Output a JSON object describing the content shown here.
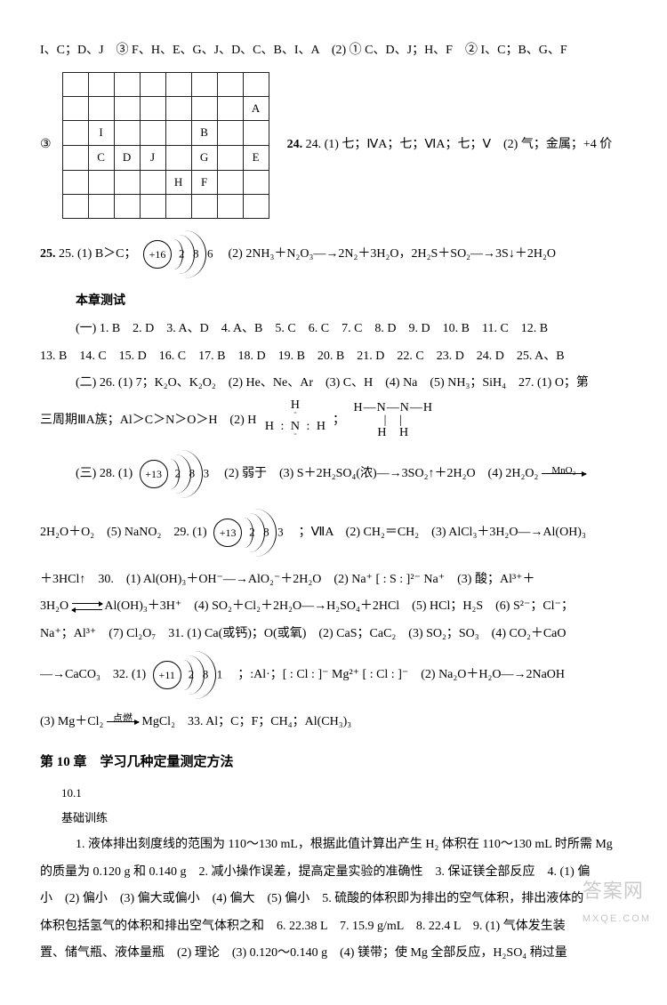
{
  "topline": "I、C；D、J　③ F、H、E、G、J、D、C、B、I、A　(2) ① C、D、J；H、F　② I、C；B、G、F",
  "q3_marker": "③",
  "grid": {
    "rows": 6,
    "cols": 8,
    "cells": [
      {
        "r": 1,
        "c": 7,
        "t": "A"
      },
      {
        "r": 2,
        "c": 1,
        "t": "I"
      },
      {
        "r": 2,
        "c": 5,
        "t": "B"
      },
      {
        "r": 3,
        "c": 1,
        "t": "C"
      },
      {
        "r": 3,
        "c": 2,
        "t": "D"
      },
      {
        "r": 3,
        "c": 3,
        "t": "J"
      },
      {
        "r": 3,
        "c": 5,
        "t": "G"
      },
      {
        "r": 3,
        "c": 7,
        "t": "E"
      },
      {
        "r": 4,
        "c": 4,
        "t": "H"
      },
      {
        "r": 4,
        "c": 5,
        "t": "F"
      }
    ],
    "border_color": "#222222"
  },
  "after_grid": "24. (1) 七；ⅣA；七；ⅥA；七；Ⅴ　(2) 气；金属；+4 价",
  "q25_prefix": "25. (1) B＞C；",
  "atom_25": {
    "nucleus": "+16",
    "shells": [
      "2",
      "8",
      "6"
    ]
  },
  "q25_rest": "(2) 2NH₃＋N₂O₃―→2N₂＋3H₂O，2H₂S＋SO₂―→3S↓＋2H₂O",
  "test_header": "本章测试",
  "mc_line1": "(一) 1. B　2. D　3. A、D　4. A、B　5. C　6. C　7. C　8. D　9. D　10. B　11. C　12. B",
  "mc_line2": "13. B　14. C　15. D　16. C　17. B　18. D　19. B　20. B　21. D　22. C　23. D　24. D　25. A、B",
  "part2": "(二) 26. (1) 7；K₂O、K₂O₂　(2) He、Ne、Ar　(3) C、H　(4) Na　(5) NH₃；SiH₄　27. (1) O；第",
  "part2_cont": "三周期ⅢA族；Al＞C＞N＞O＞H　(2) H",
  "lewis_nh": {
    "top": "H",
    "mid": "H : N : H"
  },
  "lewis_hnnh": {
    "mid": "H—N—N—H",
    "bot_h": "H   H",
    "bar": "|   |"
  },
  "q28_prefix": "(三) 28. (1) ",
  "atom_28": {
    "nucleus": "+13",
    "shells": [
      "2",
      "8",
      "3"
    ]
  },
  "q28_rest": "(2) 弱于　(3) S＋2H₂SO₄(浓)―→3SO₂↑＋2H₂O　(4) 2H₂O₂ ",
  "q28_arrow_label": "MnO₂",
  "q28_line2": "2H₂O＋O₂　(5) NaNO₂　29. (1) ",
  "atom_29": {
    "nucleus": "+13",
    "shells": [
      "2",
      "8",
      "3"
    ]
  },
  "q29_rest": "；ⅦA　(2) CH₂＝CH₂　(3) AlCl₃＋3H₂O―→Al(OH)₃",
  "q30_line1": "＋3HCl↑　30.　(1) Al(OH)₃＋OH⁻―→AlO₂⁻＋2H₂O　(2) Na⁺ [ : S : ]²⁻ Na⁺　(3) 酸；Al³⁺＋",
  "q30_line2_a": "3H₂O",
  "q30_line2_b": "Al(OH)₃＋3H⁺　(4) SO₂＋Cl₂＋2H₂O―→H₂SO₄＋2HCl　(5) HCl；H₂S　(6) S²⁻；Cl⁻；",
  "q30_line3": "Na⁺；Al³⁺　(7) Cl₂O₇　31. (1) Ca(或钙)；O(或氧)　(2) CaS；CaC₂　(3) SO₂；SO₃　(4) CO₂＋CaO",
  "q32_prefix": "―→CaCO₃　32. (1) ",
  "atom_32": {
    "nucleus": "+11",
    "shells": [
      "2",
      "8",
      "1"
    ]
  },
  "q32_rest": "；:Al·；[ : Cl : ]⁻ Mg²⁺ [ : Cl : ]⁻　(2) Na₂O＋H₂O―→2NaOH",
  "q33_a": "(3) Mg＋Cl₂ ",
  "q33_arrow_label": "点燃",
  "q33_b": " MgCl₂　33. Al；C；F；CH₄；Al(CH₃)₃",
  "chapter": "第 10 章　学习几种定量测定方法",
  "sec_101": "10.1",
  "jichu": "基础训练",
  "p1": "1. 液体排出刻度线的范围为 110～130 mL，根据此值计算出产生 H₂ 体积在 110～130 mL 时所需 Mg",
  "p2": "的质量为 0.120 g 和 0.140 g　2. 减小操作误差，提高定量实验的准确性　3. 保证镁全部反应　4. (1) 偏",
  "p3": "小　(2) 偏小　(3) 偏大或偏小　(4) 偏大　(5) 偏小　5. 硫酸的体积即为排出的空气体积，排出液体的",
  "p4": "体积包括氢气的体积和排出空气体积之和　6. 22.38 L　7. 15.9 g/mL　8. 22.4 L　9. (1) 气体发生装",
  "p5": "置、储气瓶、液体量瓶　(2) 理论　(3) 0.120～0.140 g　(4) 镁带；使 Mg 全部反应，H₂SO₄ 稍过量",
  "watermark_main": "答案网",
  "watermark_sub": "MXQE.COM",
  "colors": {
    "bg": "#ffffff",
    "text": "#000000"
  }
}
